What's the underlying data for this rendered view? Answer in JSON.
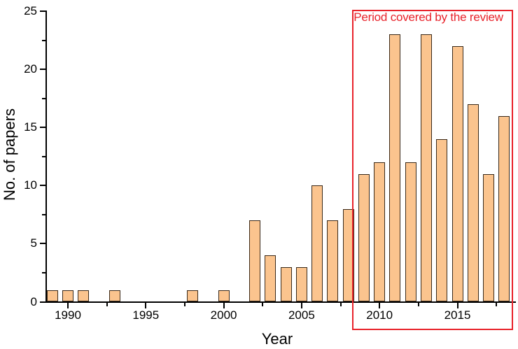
{
  "chart_data": {
    "type": "bar",
    "title": "",
    "xlabel": "Year",
    "ylabel": "No. of papers",
    "x": [
      1989,
      1990,
      1991,
      1993,
      1998,
      2000,
      2002,
      2003,
      2004,
      2005,
      2006,
      2007,
      2008,
      2009,
      2010,
      2011,
      2012,
      2013,
      2014,
      2015,
      2016,
      2017,
      2018
    ],
    "values": [
      1,
      1,
      1,
      1,
      1,
      1,
      7,
      4,
      3,
      3,
      10,
      7,
      8,
      11,
      12,
      23,
      12,
      23,
      14,
      22,
      17,
      11,
      16
    ],
    "xlim": [
      1988.55,
      2018.75
    ],
    "ylim": [
      0,
      25
    ],
    "x_ticks_major": [
      1990,
      1995,
      2000,
      2005,
      2010,
      2015
    ],
    "x_ticks_minor": [
      1992.5,
      1997.5,
      2002.5,
      2007.5,
      2012.5,
      2017.5
    ],
    "y_ticks_major": [
      0,
      5,
      10,
      15,
      20,
      25
    ],
    "y_ticks_minor": [
      2.5,
      7.5,
      12.5,
      17.5,
      22.5
    ],
    "grid": false,
    "legend": null,
    "bar_fill": "#fbc48e",
    "bar_border": "#3a2a1a",
    "axis_color": "#000000",
    "annotation": {
      "label": "Period covered by the review",
      "color": "#e8232b",
      "year_start": 2008.25,
      "year_end": 2018.55,
      "value_top": 25.15,
      "value_bottom": -2.45
    }
  }
}
